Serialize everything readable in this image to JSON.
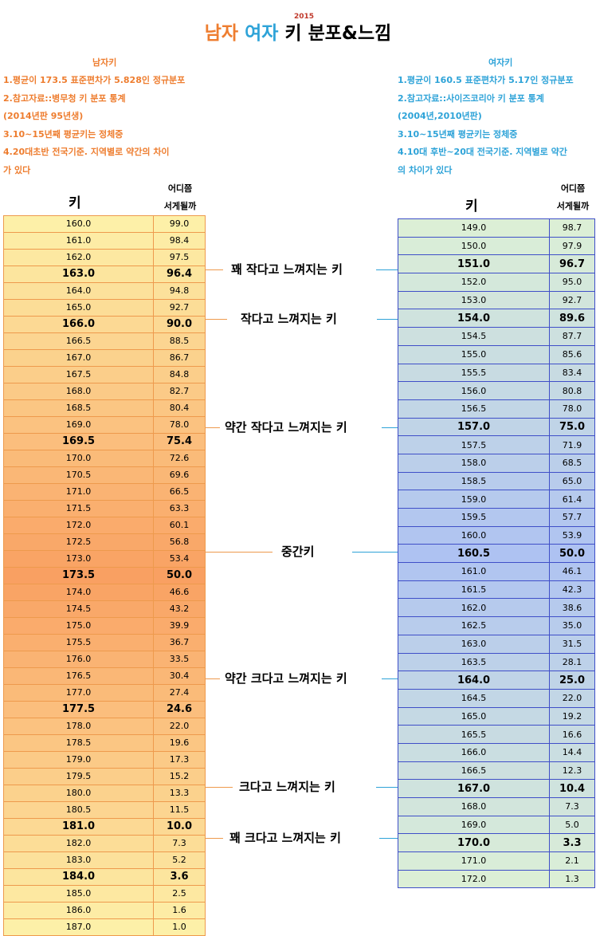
{
  "title": {
    "male": "남자",
    "female": "여자",
    "rest": "키 분포&느낌",
    "year": "2015"
  },
  "male_notes": {
    "heading": "남자키",
    "lines": [
      "1.평균이 173.5 표준편차가 5.828인 정규분포",
      "2.참고자료::병무청 키 분포 통계",
      "(2014년판 95년생)",
      "3.10~15년째 평균키는 정체중",
      "4.20대초반 전국기준. 지역별로 약간의 차이",
      "가 있다"
    ]
  },
  "female_notes": {
    "heading": "여자키",
    "lines": [
      "1.평균이 160.5 표준편차가 5.17인 정규분포",
      "2.참고자료::사이즈코리아 키 분포 통계",
      "(2004년,2010년판)",
      "3.10~15년째 평균키는 정체중",
      "4.10대 후반~20대 전국기준. 지역별로 약간",
      "의 차이가 있다"
    ]
  },
  "headers": {
    "height": "키",
    "rank_line1": "어디쯤",
    "rank_line2": "서게될까"
  },
  "colors": {
    "male_accent": "#ee7d2f",
    "female_accent": "#2ea3d8",
    "male_light": "#fdf0a8",
    "male_dark": "#f9a062",
    "female_light": "#dcefd6",
    "female_dark": "#aec2f2"
  },
  "male_rows": [
    [
      "160.0",
      "99.0",
      false
    ],
    [
      "161.0",
      "98.4",
      false
    ],
    [
      "162.0",
      "97.5",
      false
    ],
    [
      "163.0",
      "96.4",
      true
    ],
    [
      "164.0",
      "94.8",
      false
    ],
    [
      "165.0",
      "92.7",
      false
    ],
    [
      "166.0",
      "90.0",
      true
    ],
    [
      "166.5",
      "88.5",
      false
    ],
    [
      "167.0",
      "86.7",
      false
    ],
    [
      "167.5",
      "84.8",
      false
    ],
    [
      "168.0",
      "82.7",
      false
    ],
    [
      "168.5",
      "80.4",
      false
    ],
    [
      "169.0",
      "78.0",
      false
    ],
    [
      "169.5",
      "75.4",
      true
    ],
    [
      "170.0",
      "72.6",
      false
    ],
    [
      "170.5",
      "69.6",
      false
    ],
    [
      "171.0",
      "66.5",
      false
    ],
    [
      "171.5",
      "63.3",
      false
    ],
    [
      "172.0",
      "60.1",
      false
    ],
    [
      "172.5",
      "56.8",
      false
    ],
    [
      "173.0",
      "53.4",
      false
    ],
    [
      "173.5",
      "50.0",
      true
    ],
    [
      "174.0",
      "46.6",
      false
    ],
    [
      "174.5",
      "43.2",
      false
    ],
    [
      "175.0",
      "39.9",
      false
    ],
    [
      "175.5",
      "36.7",
      false
    ],
    [
      "176.0",
      "33.5",
      false
    ],
    [
      "176.5",
      "30.4",
      false
    ],
    [
      "177.0",
      "27.4",
      false
    ],
    [
      "177.5",
      "24.6",
      true
    ],
    [
      "178.0",
      "22.0",
      false
    ],
    [
      "178.5",
      "19.6",
      false
    ],
    [
      "179.0",
      "17.3",
      false
    ],
    [
      "179.5",
      "15.2",
      false
    ],
    [
      "180.0",
      "13.3",
      false
    ],
    [
      "180.5",
      "11.5",
      false
    ],
    [
      "181.0",
      "10.0",
      true
    ],
    [
      "182.0",
      "7.3",
      false
    ],
    [
      "183.0",
      "5.2",
      false
    ],
    [
      "184.0",
      "3.6",
      true
    ],
    [
      "185.0",
      "2.5",
      false
    ],
    [
      "186.0",
      "1.6",
      false
    ],
    [
      "187.0",
      "1.0",
      false
    ]
  ],
  "female_rows": [
    [
      "149.0",
      "98.7",
      false
    ],
    [
      "150.0",
      "97.9",
      false
    ],
    [
      "151.0",
      "96.7",
      true
    ],
    [
      "152.0",
      "95.0",
      false
    ],
    [
      "153.0",
      "92.7",
      false
    ],
    [
      "154.0",
      "89.6",
      true
    ],
    [
      "154.5",
      "87.7",
      false
    ],
    [
      "155.0",
      "85.6",
      false
    ],
    [
      "155.5",
      "83.4",
      false
    ],
    [
      "156.0",
      "80.8",
      false
    ],
    [
      "156.5",
      "78.0",
      false
    ],
    [
      "157.0",
      "75.0",
      true
    ],
    [
      "157.5",
      "71.9",
      false
    ],
    [
      "158.0",
      "68.5",
      false
    ],
    [
      "158.5",
      "65.0",
      false
    ],
    [
      "159.0",
      "61.4",
      false
    ],
    [
      "159.5",
      "57.7",
      false
    ],
    [
      "160.0",
      "53.9",
      false
    ],
    [
      "160.5",
      "50.0",
      true
    ],
    [
      "161.0",
      "46.1",
      false
    ],
    [
      "161.5",
      "42.3",
      false
    ],
    [
      "162.0",
      "38.6",
      false
    ],
    [
      "162.5",
      "35.0",
      false
    ],
    [
      "163.0",
      "31.5",
      false
    ],
    [
      "163.5",
      "28.1",
      false
    ],
    [
      "164.0",
      "25.0",
      true
    ],
    [
      "164.5",
      "22.0",
      false
    ],
    [
      "165.0",
      "19.2",
      false
    ],
    [
      "165.5",
      "16.6",
      false
    ],
    [
      "166.0",
      "14.4",
      false
    ],
    [
      "166.5",
      "12.3",
      false
    ],
    [
      "167.0",
      "10.4",
      true
    ],
    [
      "168.0",
      "7.3",
      false
    ],
    [
      "169.0",
      "5.0",
      false
    ],
    [
      "170.0",
      "3.3",
      true
    ],
    [
      "171.0",
      "2.1",
      false
    ],
    [
      "172.0",
      "1.3",
      false
    ]
  ],
  "feelings": [
    "꽤 작다고 느껴지는 키",
    "작다고 느껴지는 키",
    "약간 작다고 느껴지는 키",
    "중간키",
    "약간 크다고 느껴지는 키",
    "크다고 느껴지는 키",
    "꽤 크다고 느껴지는 키"
  ]
}
